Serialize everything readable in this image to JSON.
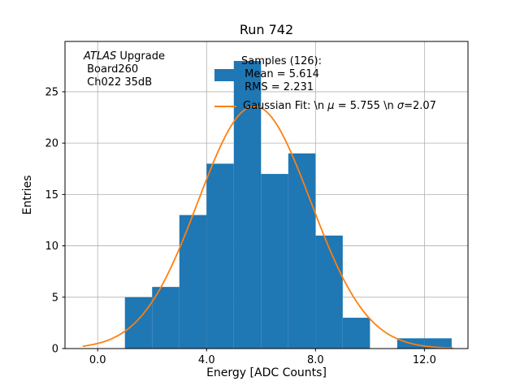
{
  "chart_data": {
    "type": "histogram",
    "title": "Run 742",
    "xlabel": "Energy [ADC Counts]",
    "ylabel": "Entries",
    "xlim": [
      -1.2,
      13.6
    ],
    "ylim": [
      0,
      29.9
    ],
    "xticks": [
      0,
      4,
      8,
      12
    ],
    "xtick_labels": [
      "0.0",
      "4.0",
      "8.0",
      "12.0"
    ],
    "yticks": [
      0,
      5,
      10,
      15,
      20,
      25
    ],
    "ytick_labels": [
      "0",
      "5",
      "10",
      "15",
      "20",
      "25"
    ],
    "grid": true,
    "grid_color": "#b0b0b0",
    "bar_color": "#1f77b4",
    "line_color": "#ff7f0e",
    "bins": {
      "start": 1,
      "width": 1,
      "counts": [
        5,
        6,
        13,
        18,
        28,
        17,
        19,
        11,
        3,
        0,
        1,
        1
      ]
    },
    "gaussian": {
      "mu": 5.755,
      "sigma": 2.07,
      "amplitude": 23.6,
      "x_start": -0.55,
      "x_end": 13.1
    }
  },
  "annotation": {
    "atlas": "ATLAS",
    "rest": " Upgrade",
    "line2": " Board260",
    "line3": " Ch022 35dB"
  },
  "legend": {
    "samples": {
      "line1": "Samples (126):",
      "line2": " Mean = 5.614",
      "line3": " RMS = 2.231"
    },
    "gauss": {
      "p1": "Gaussian Fit: \\n ",
      "mu": "μ",
      "p2": " = 5.755 \\n ",
      "sigma": "σ",
      "p3": "=2.07"
    }
  }
}
